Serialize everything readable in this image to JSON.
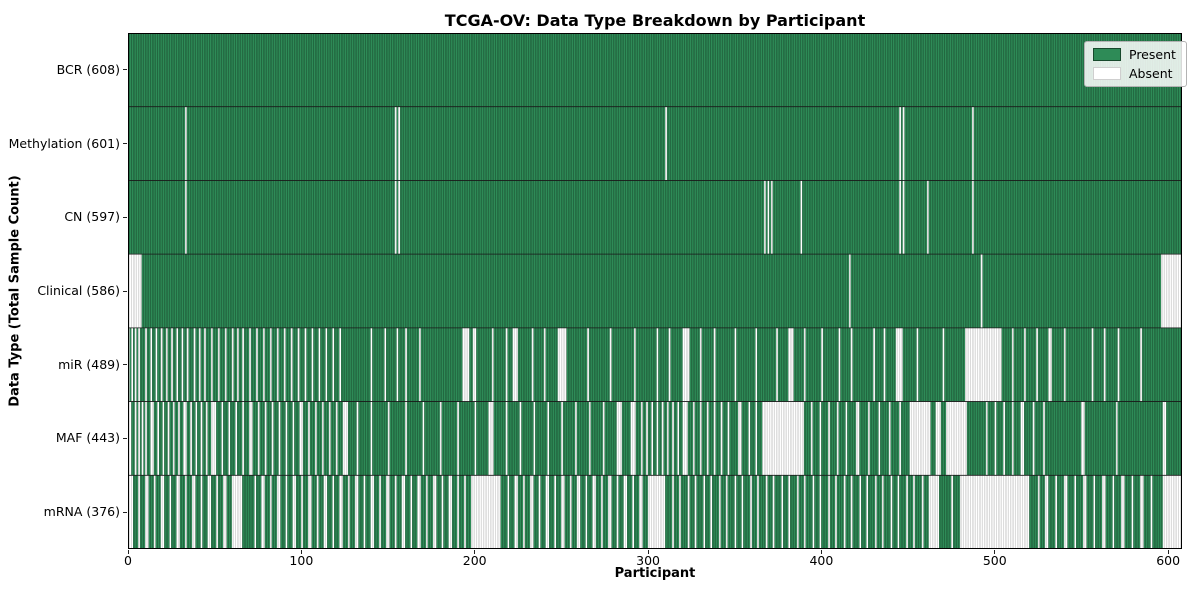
{
  "colors": {
    "present": "#2e8b57",
    "present_edge": "#17492c",
    "absent": "#ffffff",
    "absent_edge": "#b9b9b9",
    "separator": "#1a1a1a",
    "spine": "#000000"
  },
  "legend_labels": [
    "Present",
    "Absent"
  ],
  "chart_data": {
    "type": "heatmap",
    "title": "TCGA-OV: Data Type Breakdown by Participant",
    "xlabel": "Participant",
    "ylabel": "Data Type (Total Sample Count)",
    "legend_position": "upper right",
    "grid": false,
    "n_participants": 608,
    "xlim": [
      0,
      608
    ],
    "x_ticks": [
      0,
      100,
      200,
      300,
      400,
      500,
      600
    ],
    "value_encoding": {
      "present": 1,
      "absent": 0
    },
    "rows": [
      {
        "name": "BCR",
        "label": "BCR (608)",
        "present_count": 608,
        "absent_ranges": []
      },
      {
        "name": "Methylation",
        "label": "Methylation (601)",
        "present_count": 601,
        "absent_ranges": [
          [
            33
          ],
          [
            154
          ],
          [
            156
          ],
          [
            310
          ],
          [
            445
          ],
          [
            447
          ],
          [
            487
          ]
        ]
      },
      {
        "name": "CN",
        "label": "CN (597)",
        "present_count": 597,
        "absent_ranges": [
          [
            33
          ],
          [
            154
          ],
          [
            156
          ],
          [
            367
          ],
          [
            369
          ],
          [
            371
          ],
          [
            388
          ],
          [
            445
          ],
          [
            447
          ],
          [
            461
          ],
          [
            487
          ]
        ]
      },
      {
        "name": "Clinical",
        "label": "Clinical (586)",
        "present_count": 586,
        "absent_ranges": [
          [
            0,
            7
          ],
          [
            416
          ],
          [
            492
          ],
          [
            596,
            607
          ]
        ]
      },
      {
        "name": "miR",
        "label": "miR (489)",
        "present_count": 489,
        "absent_ranges": [
          [
            0
          ],
          [
            2
          ],
          [
            4
          ],
          [
            6
          ],
          [
            10
          ],
          [
            13
          ],
          [
            16
          ],
          [
            19
          ],
          [
            22
          ],
          [
            25
          ],
          [
            28
          ],
          [
            31
          ],
          [
            34
          ],
          [
            38
          ],
          [
            41
          ],
          [
            44
          ],
          [
            48
          ],
          [
            52
          ],
          [
            56
          ],
          [
            60
          ],
          [
            63
          ],
          [
            66
          ],
          [
            70
          ],
          [
            74
          ],
          [
            78
          ],
          [
            82
          ],
          [
            86
          ],
          [
            90
          ],
          [
            94
          ],
          [
            98
          ],
          [
            102
          ],
          [
            106
          ],
          [
            110
          ],
          [
            114
          ],
          [
            118
          ],
          [
            122
          ],
          [
            140
          ],
          [
            148
          ],
          [
            155
          ],
          [
            160
          ],
          [
            168
          ],
          [
            193,
            196
          ],
          [
            199,
            200
          ],
          [
            210
          ],
          [
            218
          ],
          [
            222,
            224
          ],
          [
            233
          ],
          [
            240
          ],
          [
            248,
            252
          ],
          [
            265
          ],
          [
            278
          ],
          [
            292
          ],
          [
            305
          ],
          [
            312
          ],
          [
            320,
            323
          ],
          [
            330
          ],
          [
            338
          ],
          [
            350
          ],
          [
            362
          ],
          [
            374
          ],
          [
            381,
            383
          ],
          [
            390
          ],
          [
            400
          ],
          [
            410
          ],
          [
            417
          ],
          [
            430
          ],
          [
            436
          ],
          [
            443,
            446
          ],
          [
            455
          ],
          [
            470
          ],
          [
            483,
            503
          ],
          [
            510
          ],
          [
            517
          ],
          [
            524
          ],
          [
            531,
            532
          ],
          [
            540
          ],
          [
            556
          ],
          [
            563
          ],
          [
            571
          ],
          [
            584
          ]
        ]
      },
      {
        "name": "MAF",
        "label": "MAF (443)",
        "present_count": 443,
        "absent_ranges": [
          [
            0,
            1
          ],
          [
            4
          ],
          [
            6
          ],
          [
            8
          ],
          [
            10
          ],
          [
            13,
            14
          ],
          [
            17
          ],
          [
            20
          ],
          [
            23
          ],
          [
            26
          ],
          [
            29
          ],
          [
            32,
            33
          ],
          [
            36
          ],
          [
            39
          ],
          [
            42
          ],
          [
            45
          ],
          [
            48,
            50
          ],
          [
            54
          ],
          [
            58
          ],
          [
            62
          ],
          [
            66
          ],
          [
            70,
            71
          ],
          [
            75
          ],
          [
            79
          ],
          [
            83
          ],
          [
            87
          ],
          [
            91
          ],
          [
            95
          ],
          [
            99,
            100
          ],
          [
            104
          ],
          [
            108
          ],
          [
            112
          ],
          [
            116
          ],
          [
            120
          ],
          [
            124,
            126
          ],
          [
            132
          ],
          [
            140
          ],
          [
            150
          ],
          [
            160
          ],
          [
            170
          ],
          [
            180
          ],
          [
            190
          ],
          [
            200
          ],
          [
            208,
            210
          ],
          [
            218
          ],
          [
            226
          ],
          [
            234
          ],
          [
            242
          ],
          [
            250
          ],
          [
            258
          ],
          [
            266
          ],
          [
            274
          ],
          [
            282,
            284
          ],
          [
            290,
            292
          ],
          [
            296
          ],
          [
            299
          ],
          [
            302
          ],
          [
            305
          ],
          [
            308
          ],
          [
            311
          ],
          [
            314
          ],
          [
            317
          ],
          [
            320,
            322
          ],
          [
            326
          ],
          [
            330
          ],
          [
            334
          ],
          [
            338
          ],
          [
            342
          ],
          [
            346
          ],
          [
            352,
            353
          ],
          [
            358
          ],
          [
            362
          ],
          [
            366,
            389
          ],
          [
            394
          ],
          [
            399
          ],
          [
            404
          ],
          [
            409
          ],
          [
            414
          ],
          [
            420,
            421
          ],
          [
            427
          ],
          [
            433
          ],
          [
            439
          ],
          [
            445
          ],
          [
            451,
            462
          ],
          [
            466,
            468
          ],
          [
            472,
            483
          ],
          [
            495
          ],
          [
            500
          ],
          [
            505
          ],
          [
            510
          ],
          [
            515,
            516
          ],
          [
            522
          ],
          [
            528
          ],
          [
            550,
            551
          ],
          [
            570
          ],
          [
            597,
            598
          ]
        ]
      },
      {
        "name": "mRNA",
        "label": "mRNA (376)",
        "present_count": 376,
        "absent_ranges": [
          [
            0,
            2
          ],
          [
            6
          ],
          [
            10,
            11
          ],
          [
            15
          ],
          [
            19,
            20
          ],
          [
            24
          ],
          [
            28,
            29
          ],
          [
            33
          ],
          [
            37,
            38
          ],
          [
            42
          ],
          [
            46,
            47
          ],
          [
            51
          ],
          [
            55,
            56
          ],
          [
            60,
            65
          ],
          [
            73
          ],
          [
            77,
            78
          ],
          [
            82
          ],
          [
            86,
            87
          ],
          [
            91
          ],
          [
            95,
            96
          ],
          [
            100
          ],
          [
            104,
            105
          ],
          [
            109
          ],
          [
            113,
            114
          ],
          [
            118
          ],
          [
            122,
            123
          ],
          [
            127
          ],
          [
            131,
            132
          ],
          [
            136
          ],
          [
            140,
            141
          ],
          [
            145
          ],
          [
            149,
            150
          ],
          [
            154
          ],
          [
            158,
            159
          ],
          [
            163
          ],
          [
            167,
            168
          ],
          [
            172
          ],
          [
            176,
            177
          ],
          [
            181
          ],
          [
            185,
            186
          ],
          [
            190
          ],
          [
            194
          ],
          [
            198,
            214
          ],
          [
            219
          ],
          [
            223,
            224
          ],
          [
            228
          ],
          [
            232,
            233
          ],
          [
            237
          ],
          [
            241,
            242
          ],
          [
            246
          ],
          [
            250,
            251
          ],
          [
            255
          ],
          [
            259,
            260
          ],
          [
            264
          ],
          [
            268,
            269
          ],
          [
            273
          ],
          [
            277,
            278
          ],
          [
            282
          ],
          [
            286,
            287
          ],
          [
            291
          ],
          [
            295,
            296
          ],
          [
            300,
            309
          ],
          [
            314
          ],
          [
            318
          ],
          [
            323
          ],
          [
            327
          ],
          [
            332
          ],
          [
            336
          ],
          [
            341
          ],
          [
            345
          ],
          [
            350
          ],
          [
            354
          ],
          [
            359
          ],
          [
            363
          ],
          [
            368
          ],
          [
            372
          ],
          [
            377
          ],
          [
            381
          ],
          [
            386
          ],
          [
            390
          ],
          [
            395
          ],
          [
            399
          ],
          [
            404
          ],
          [
            408
          ],
          [
            413
          ],
          [
            417
          ],
          [
            422
          ],
          [
            426
          ],
          [
            431
          ],
          [
            435
          ],
          [
            440
          ],
          [
            444
          ],
          [
            449
          ],
          [
            453
          ],
          [
            458
          ],
          [
            462,
            467
          ],
          [
            475
          ],
          [
            480,
            519
          ],
          [
            525
          ],
          [
            529,
            530
          ],
          [
            535
          ],
          [
            540,
            541
          ],
          [
            546
          ],
          [
            551,
            552
          ],
          [
            557
          ],
          [
            562,
            563
          ],
          [
            568
          ],
          [
            573,
            574
          ],
          [
            579
          ],
          [
            584,
            585
          ],
          [
            590
          ],
          [
            597,
            607
          ]
        ]
      }
    ]
  }
}
